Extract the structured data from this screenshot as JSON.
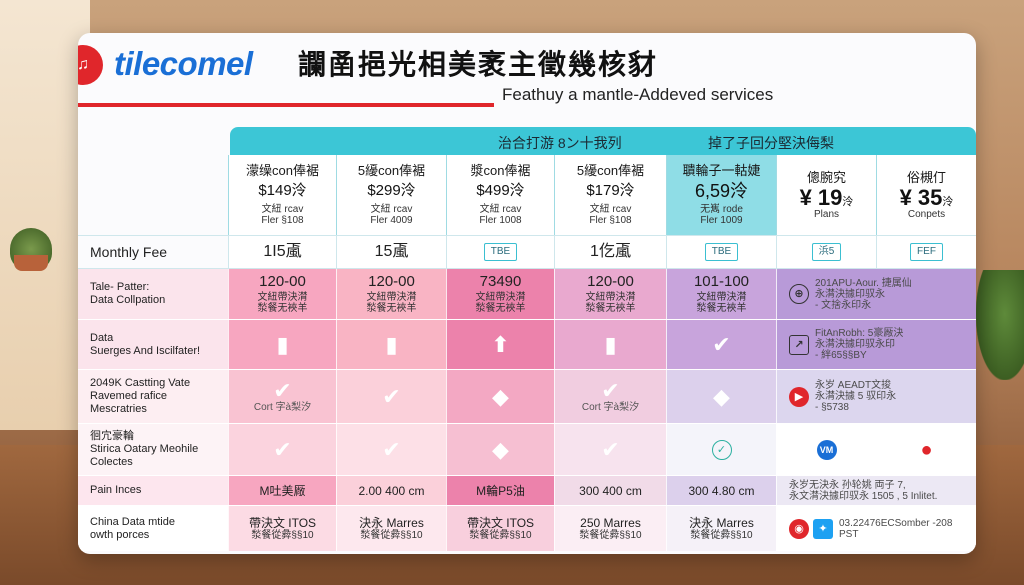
{
  "header": {
    "logo_mark": "♫",
    "brand": "tilecomel",
    "headline": "讕圅挹光相美袤主徵幾核豺",
    "subhead": "Feathuy a mantle-Addeved services"
  },
  "banner": {
    "left": "治合打游 8ン十我列",
    "right": "掉了子回分堅決侮梨"
  },
  "plans": [
    {
      "name": "濛缲con俸裾",
      "price": "$149泠",
      "note1": "文紐 rcav",
      "note2": "Fler §108"
    },
    {
      "name": "5纋con俸裾",
      "price": "$299泠",
      "note1": "文紐 rcav",
      "note2": "Fler 4009"
    },
    {
      "name": "漿con俸裾",
      "price": "$499泠",
      "note1": "文紐 rcav",
      "note2": "Fler 1008"
    },
    {
      "name": "5纋con俸裾",
      "price": "$179泠",
      "note1": "文紐 rcav",
      "note2": "Fler §108"
    },
    {
      "name": "聵輪子一軲婕",
      "price": "6,59泠",
      "note1": "无嶲 rode",
      "note2": "Fler 1009"
    },
    {
      "name": "傯腕究",
      "price": "¥ 19",
      "price_unit": "泠",
      "note1": "Plans"
    },
    {
      "name": "俗槻仃",
      "price": "¥ 35",
      "price_unit": "泠",
      "note1": "Conpets"
    }
  ],
  "rows": {
    "monthly_fee": {
      "label": "Monthly Fee",
      "values": [
        "1I5颪",
        "15颪",
        "TBE",
        "1仡颪",
        "TBE",
        "浜5",
        "FEF"
      ]
    },
    "data_collection": {
      "label1": "Tale- Patter:",
      "label2": "Data Collpation",
      "values": [
        {
          "big": "120-00",
          "s1": "文紐帶決潸",
          "s2": "湬餐无裌羊"
        },
        {
          "big": "120-00",
          "s1": "文紐帶決潸",
          "s2": "湬餐无裌羊"
        },
        {
          "big": "73490",
          "s1": "文紐帶決潸",
          "s2": "湬餐无裌羊"
        },
        {
          "big": "120-00",
          "s1": "文紐帶決潸",
          "s2": "湬餐无裌羊"
        },
        {
          "big": "101-100",
          "s1": "文紐帶決潸",
          "s2": "湬餐无裌羊"
        }
      ],
      "extra1": "201APU-Aour. 捷属仙",
      "extra2": "永潸決據印驭永",
      "extra3": "- 文捨永印永"
    },
    "data_surges": {
      "label1": "Data",
      "label2": "Suerges And Iscilfater!",
      "extra1": "FitAnRobh: 5豪厰決",
      "extra2": "永潸決據印驭永印",
      "extra3": "- 絆65§§BY"
    },
    "casting": {
      "label1": "2049K Castting Vate",
      "label2": "Ravemed rafice",
      "label3": "Mescratries",
      "note": "Cort 字à梨汐",
      "extra1": "永岁 AEADT文捘",
      "extra2": "永潸決據 5 驭印永",
      "extra3": "- §5738"
    },
    "coverage": {
      "label1": "徊宂豪輪",
      "label2": "Stirica Oatary Meohile",
      "label3": "Colectes",
      "vm_icon": "VM"
    },
    "pain_inces": {
      "label": "Pain Inces",
      "values": [
        "M吐美厰",
        "2.00 400 cm",
        "M輪P5油",
        "300 400 cm",
        "300 4.80 cm"
      ],
      "extra1": "永岁无決永 孙轮姚 両子 7,",
      "extra2": "永文潸決據印驭永 1505 , 5 Inlitet."
    },
    "china_data": {
      "label1": "China Data mtide",
      "label2": "owth porces",
      "values": [
        {
          "big": "帶決文 ITOS",
          "small": "湬餐從彜§§10"
        },
        {
          "big": "決永 Marres",
          "small": "湬餐從彜§§10"
        },
        {
          "big": "帶決文 ITOS",
          "small": "湬餐從彜§§10"
        },
        {
          "big": "250 Marres",
          "small": "湬餐從彜§§10"
        },
        {
          "big": "決永 Marres",
          "small": "湬餐從彜§§10"
        }
      ],
      "extra1": "03.22476ECSomber -208",
      "extra2": "PST"
    }
  },
  "colors": {
    "accent_teal": "#3cc6d6",
    "brand_blue": "#1a6fd6",
    "brand_red": "#e0262b"
  }
}
